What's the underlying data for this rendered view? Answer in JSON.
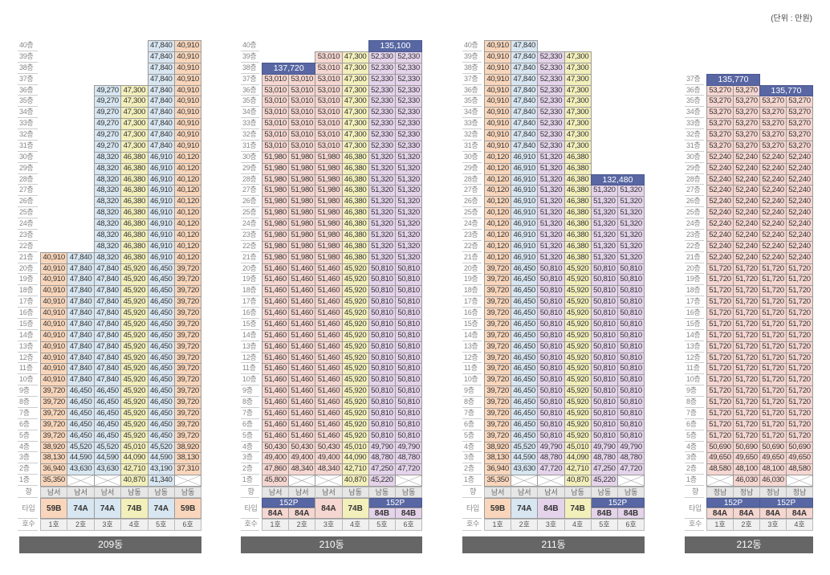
{
  "unit_note": "(단위 : 만원)",
  "row_labels": {
    "direction": "향",
    "type": "타입",
    "unit_no": "호수",
    "floor_suffix": "층"
  },
  "type_colors": {
    "59B": "#f9d6bb",
    "74A": "#d7e6f1",
    "74B": "#f2efbb",
    "84A": "#f5d6d0",
    "84B": "#e4d3ea",
    "152P": "#5867a3"
  },
  "buildings": [
    {
      "name": "209동",
      "top_floor": 40,
      "directions": [
        "남서",
        "남서",
        "남서",
        "남동",
        "남동",
        "남동"
      ],
      "units": [
        "1호",
        "2호",
        "3호",
        "4호",
        "5호",
        "6호"
      ],
      "types": [
        "59B",
        "74A",
        "74A",
        "74B",
        "74A",
        "59B"
      ],
      "type_penthouses": [],
      "floors": [
        {
          "from": 40,
          "to": 37,
          "values": [
            null,
            null,
            null,
            null,
            "47,840",
            "40,910"
          ]
        },
        {
          "from": 36,
          "to": 31,
          "values": [
            null,
            null,
            "49,270",
            "47,300",
            "47,840",
            "40,910"
          ]
        },
        {
          "from": 30,
          "to": 22,
          "values": [
            null,
            null,
            "48,320",
            "46,380",
            "46,910",
            "40,120"
          ]
        },
        {
          "from": 21,
          "to": 21,
          "values": [
            "40,910",
            "47,840",
            "48,320",
            "46,380",
            "46,910",
            "40,120"
          ]
        },
        {
          "from": 20,
          "to": 10,
          "values": [
            "40,910",
            "47,840",
            "47,840",
            "45,920",
            "46,450",
            "39,720"
          ]
        },
        {
          "from": 9,
          "to": 5,
          "values": [
            "39,720",
            "46,450",
            "46,450",
            "45,920",
            "46,450",
            "39,720"
          ]
        },
        {
          "from": 4,
          "to": 4,
          "values": [
            "38,920",
            "45,520",
            "45,520",
            "45,010",
            "45,520",
            "38,920"
          ]
        },
        {
          "from": 3,
          "to": 3,
          "values": [
            "38,130",
            "44,590",
            "44,590",
            "44,090",
            "44,590",
            "38,130"
          ]
        },
        {
          "from": 2,
          "to": 2,
          "values": [
            "36,940",
            "43,630",
            "43,630",
            "42,710",
            "43,190",
            "37,310"
          ]
        },
        {
          "from": 1,
          "to": 1,
          "values": [
            "35,350",
            "X",
            "X",
            "40,870",
            "41,340",
            "X"
          ]
        }
      ],
      "penthouses": []
    },
    {
      "name": "210동",
      "top_floor": 40,
      "directions": [
        "남서",
        "남서",
        "남서",
        "남동",
        "남동",
        "남동"
      ],
      "units": [
        "1호",
        "2호",
        "3호",
        "4호",
        "5호",
        "6호"
      ],
      "types": [
        "84A",
        "84A",
        "84A",
        "74B",
        "84B",
        "84B"
      ],
      "type_penthouses": [
        {
          "label": "152P",
          "cols": [
            0,
            1
          ]
        },
        {
          "label": "152P",
          "cols": [
            4,
            5
          ]
        }
      ],
      "floors": [
        {
          "from": 39,
          "to": 39,
          "values": [
            null,
            null,
            "53,010",
            "47,300",
            "52,330",
            "52,330"
          ]
        },
        {
          "from": 38,
          "to": 38,
          "values": [
            null,
            null,
            "53,010",
            "47,300",
            "52,330",
            "52,330"
          ]
        },
        {
          "from": 37,
          "to": 31,
          "values": [
            "53,010",
            "53,010",
            "53,010",
            "47,300",
            "52,330",
            "52,330"
          ]
        },
        {
          "from": 30,
          "to": 21,
          "values": [
            "51,980",
            "51,980",
            "51,980",
            "46,380",
            "51,320",
            "51,320"
          ]
        },
        {
          "from": 20,
          "to": 5,
          "values": [
            "51,460",
            "51,460",
            "51,460",
            "45,920",
            "50,810",
            "50,810"
          ]
        },
        {
          "from": 4,
          "to": 4,
          "values": [
            "50,430",
            "50,430",
            "50,430",
            "45,010",
            "49,790",
            "49,790"
          ]
        },
        {
          "from": 3,
          "to": 3,
          "values": [
            "49,400",
            "49,400",
            "49,400",
            "44,090",
            "48,780",
            "48,780"
          ]
        },
        {
          "from": 2,
          "to": 2,
          "values": [
            "47,860",
            "48,340",
            "48,340",
            "42,710",
            "47,250",
            "47,720"
          ]
        },
        {
          "from": 1,
          "to": 1,
          "values": [
            "45,800",
            "X",
            "X",
            "40,870",
            "45,220",
            "X"
          ]
        }
      ],
      "penthouses": [
        {
          "floor": 40,
          "cols": [
            4,
            5
          ],
          "price": "135,100"
        },
        {
          "floor": 38,
          "cols": [
            0,
            1
          ],
          "price": "137,720"
        }
      ]
    },
    {
      "name": "211동",
      "top_floor": 40,
      "directions": [
        "남서",
        "남서",
        "남서",
        "남동",
        "남동",
        "남동"
      ],
      "units": [
        "1호",
        "2호",
        "3호",
        "4호",
        "5호",
        "6호"
      ],
      "types": [
        "59B",
        "74A",
        "84B",
        "74B",
        "84B",
        "84B"
      ],
      "type_penthouses": [
        {
          "label": "152P",
          "cols": [
            4,
            5
          ]
        }
      ],
      "floors": [
        {
          "from": 40,
          "to": 40,
          "values": [
            "40,910",
            "47,840",
            null,
            null,
            null,
            null
          ]
        },
        {
          "from": 39,
          "to": 31,
          "values": [
            "40,910",
            "47,840",
            "52,330",
            "47,300",
            null,
            null
          ]
        },
        {
          "from": 30,
          "to": 28,
          "values": [
            "40,120",
            "46,910",
            "51,320",
            "46,380",
            null,
            null
          ]
        },
        {
          "from": 27,
          "to": 21,
          "values": [
            "40,120",
            "46,910",
            "51,320",
            "46,380",
            "51,320",
            "51,320"
          ]
        },
        {
          "from": 20,
          "to": 5,
          "values": [
            "39,720",
            "46,450",
            "50,810",
            "45,920",
            "50,810",
            "50,810"
          ]
        },
        {
          "from": 4,
          "to": 4,
          "values": [
            "38,920",
            "45,520",
            "49,790",
            "45,010",
            "49,790",
            "49,790"
          ]
        },
        {
          "from": 3,
          "to": 3,
          "values": [
            "38,130",
            "44,590",
            "48,780",
            "44,090",
            "48,780",
            "48,780"
          ]
        },
        {
          "from": 2,
          "to": 2,
          "values": [
            "36,940",
            "43,630",
            "47,720",
            "42,710",
            "47,250",
            "47,720"
          ]
        },
        {
          "from": 1,
          "to": 1,
          "values": [
            "35,350",
            "X",
            "X",
            "40,870",
            "45,220",
            "X"
          ]
        }
      ],
      "penthouses": [
        {
          "floor": 28,
          "cols": [
            4,
            5
          ],
          "price": "132,480"
        }
      ]
    },
    {
      "name": "212동",
      "top_floor": 37,
      "directions": [
        "정남",
        "정남",
        "정남",
        "정남"
      ],
      "units": [
        "1호",
        "2호",
        "3호",
        "4호"
      ],
      "types": [
        "84A",
        "84A",
        "84A",
        "84A"
      ],
      "type_penthouses": [
        {
          "label": "152P",
          "cols": [
            0,
            1
          ]
        },
        {
          "label": "152P",
          "cols": [
            2,
            3
          ]
        }
      ],
      "floors": [
        {
          "from": 36,
          "to": 36,
          "values": [
            "53,270",
            "53,270",
            null,
            null
          ]
        },
        {
          "from": 35,
          "to": 31,
          "values": [
            "53,270",
            "53,270",
            "53,270",
            "53,270"
          ]
        },
        {
          "from": 30,
          "to": 21,
          "values": [
            "52,240",
            "52,240",
            "52,240",
            "52,240"
          ]
        },
        {
          "from": 20,
          "to": 5,
          "values": [
            "51,720",
            "51,720",
            "51,720",
            "51,720"
          ]
        },
        {
          "from": 4,
          "to": 4,
          "values": [
            "50,690",
            "50,690",
            "50,690",
            "50,690"
          ]
        },
        {
          "from": 3,
          "to": 3,
          "values": [
            "49,650",
            "49,650",
            "49,650",
            "49,650"
          ]
        },
        {
          "from": 2,
          "to": 2,
          "values": [
            "48,580",
            "48,100",
            "48,100",
            "48,580"
          ]
        },
        {
          "from": 1,
          "to": 1,
          "values": [
            "X",
            "46,030",
            "46,030",
            "X"
          ]
        }
      ],
      "penthouses": [
        {
          "floor": 37,
          "cols": [
            0,
            1
          ],
          "price": "135,770"
        },
        {
          "floor": 36,
          "cols": [
            2,
            3
          ],
          "price": "135,770"
        }
      ]
    }
  ]
}
